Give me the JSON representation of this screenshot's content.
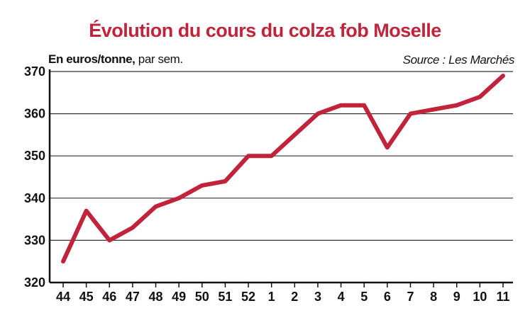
{
  "chart_data": {
    "type": "line",
    "title": "Évolution du cours du colza fob Moselle",
    "unit_label_bold": "En euros/tonne,",
    "unit_label_rest": " par sem.",
    "source": "Source : Les Marchés",
    "categories": [
      "44",
      "45",
      "46",
      "47",
      "48",
      "49",
      "50",
      "51",
      "52",
      "1",
      "2",
      "3",
      "4",
      "5",
      "6",
      "7",
      "8",
      "9",
      "10",
      "11"
    ],
    "series": [
      {
        "values": [
          325,
          337,
          330,
          333,
          338,
          340,
          343,
          344,
          350,
          350,
          355,
          360,
          362,
          362,
          352,
          360,
          361,
          362,
          364,
          369
        ]
      }
    ],
    "ylim": [
      320,
      370
    ],
    "yticks": [
      320,
      330,
      340,
      350,
      360,
      370
    ],
    "grid": true,
    "line_color": "#c0233a"
  }
}
